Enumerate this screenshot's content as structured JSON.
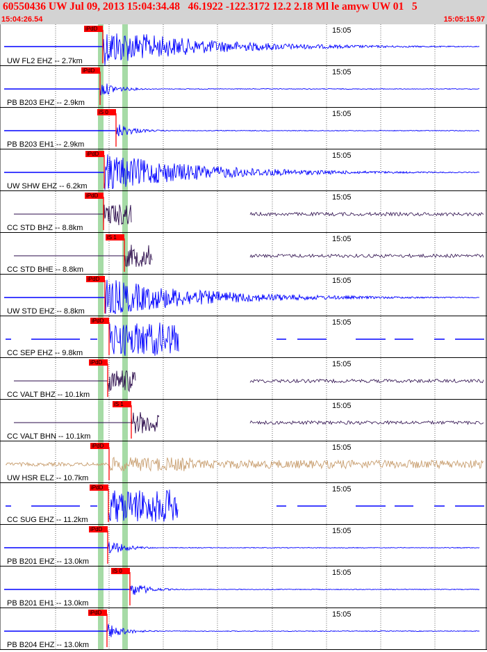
{
  "header": {
    "title": "60550436 UW Jul 09, 2013 15:04:34.48   46.1922 -122.3172 12.2 2.18 Ml le amyw UW 01   5",
    "time_start": "15:04:26.54",
    "time_end": "15:05:15.97"
  },
  "chart_data": {
    "type": "seismogram",
    "time_tick_label": "15:05",
    "colors": {
      "trace": "#0000ff",
      "cc_trace": "#2a0a4a",
      "hsr_trace": "#c89e6f",
      "pick": "#ff0000",
      "pick_box": "#ff0000",
      "window": "#a6dba6",
      "grid": "#000000",
      "header_bg": "#d3d3d3"
    },
    "traces": [
      {
        "label": "UW FL2 EHZ -- 2.7km",
        "pick": "iPdD",
        "color": "#0000ff",
        "style": "long"
      },
      {
        "label": "PB B203 EHZ -- 2.9km",
        "pick": "iPdD",
        "color": "#0000ff",
        "style": "short"
      },
      {
        "label": "PB B203 EH1 -- 2.9km",
        "pick": "iS 0",
        "color": "#0000ff",
        "style": "short"
      },
      {
        "label": "UW SHW EHZ -- 6.2km",
        "pick": "iPdD",
        "color": "#0000ff",
        "style": "long"
      },
      {
        "label": "CC STD BHZ -- 8.8km",
        "pick": "iPdD",
        "color": "#2a0a4a",
        "style": "gap"
      },
      {
        "label": "CC STD BHE -- 8.8km",
        "pick": "iS 1",
        "color": "#2a0a4a",
        "style": "gap"
      },
      {
        "label": "UW STD EHZ -- 8.8km",
        "pick": "iPdD",
        "color": "#0000ff",
        "style": "long"
      },
      {
        "label": "CC SEP EHZ -- 9.8km",
        "pick": "iPdD",
        "color": "#0000ff",
        "style": "dash"
      },
      {
        "label": "CC VALT BHZ -- 10.1km",
        "pick": "iPdD",
        "color": "#2a0a4a",
        "style": "gap"
      },
      {
        "label": "CC VALT BHN -- 10.1km",
        "pick": "iS 1",
        "color": "#2a0a4a",
        "style": "gap"
      },
      {
        "label": "UW HSR ELZ -- 10.7km",
        "pick": "iPdD",
        "color": "#c89e6f",
        "style": "noisy"
      },
      {
        "label": "CC SUG EHZ -- 11.2km",
        "pick": "iPdD",
        "color": "#0000ff",
        "style": "dash"
      },
      {
        "label": "PB B201 EHZ -- 13.0km",
        "pick": "iPdD",
        "color": "#0000ff",
        "style": "short"
      },
      {
        "label": "PB B201 EH1 -- 13.0km",
        "pick": "iS 0",
        "color": "#0000ff",
        "style": "short"
      },
      {
        "label": "PB B204 EHZ -- 13.0km",
        "pick": "iPdD",
        "color": "#0000ff",
        "style": "short"
      }
    ]
  }
}
